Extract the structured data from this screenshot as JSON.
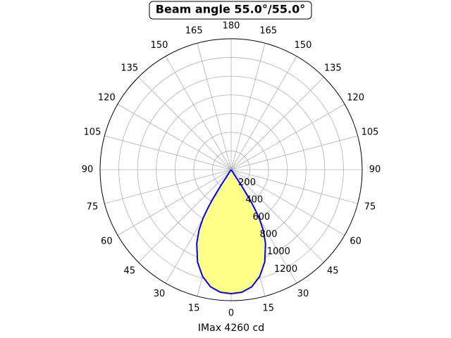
{
  "chart_data": {
    "type": "polar",
    "title": "Beam angle 55.0°/55.0°",
    "xlabel": "IMax 4260 cd",
    "x": [
      -34,
      -33,
      -32,
      -31,
      -30,
      -28,
      -25,
      -20,
      -15,
      -10,
      -5,
      0,
      5,
      10,
      15,
      20,
      25,
      28,
      30,
      31,
      32,
      33,
      34
    ],
    "values": [
      0,
      200,
      380,
      500,
      600,
      730,
      870,
      1050,
      1180,
      1270,
      1315,
      1325,
      1315,
      1270,
      1180,
      1050,
      870,
      730,
      600,
      500,
      380,
      200,
      0
    ],
    "color": "#0000ff",
    "fill_color": "#ffff88",
    "rlim": [
      0,
      1400
    ],
    "rticks": [
      200,
      400,
      600,
      800,
      1000,
      1200
    ],
    "thetaticks": [
      0,
      15,
      30,
      45,
      60,
      75,
      90,
      105,
      120,
      135,
      150,
      165,
      180,
      {
        "value": 195,
        "label": "165"
      },
      {
        "value": 210,
        "label": "150"
      },
      {
        "value": 225,
        "label": "135"
      },
      {
        "value": 240,
        "label": "120"
      },
      {
        "value": 255,
        "label": "105"
      },
      {
        "value": 270,
        "label": "90"
      },
      {
        "value": 285,
        "label": "75"
      },
      {
        "value": 300,
        "label": "60"
      },
      {
        "value": 315,
        "label": "45"
      },
      {
        "value": 330,
        "label": "30"
      },
      {
        "value": 345,
        "label": "15"
      }
    ],
    "grid": true
  }
}
